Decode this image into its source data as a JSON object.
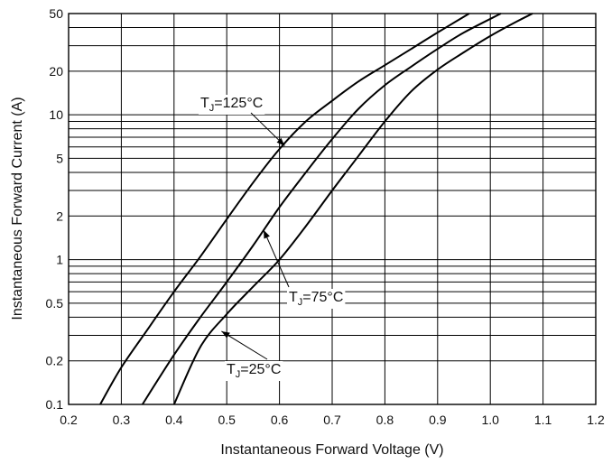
{
  "chart_data": {
    "type": "line",
    "title": "",
    "xlabel": "Instantaneous Forward Voltage (V)",
    "ylabel": "Instantaneous Forward Current (A)",
    "xlim": [
      0.2,
      1.2
    ],
    "ylim": [
      0.1,
      50
    ],
    "yscale": "log",
    "grid": true,
    "x_ticks": [
      "0.2",
      "0.3",
      "0.4",
      "0.5",
      "0.6",
      "0.7",
      "0.8",
      "0.9",
      "1.0",
      "1.1",
      "1.2"
    ],
    "y_ticks": [
      {
        "value": 0.1,
        "label": "0.1"
      },
      {
        "value": 0.2,
        "label": "0.2"
      },
      {
        "value": 0.5,
        "label": "0.5"
      },
      {
        "value": 1,
        "label": "1"
      },
      {
        "value": 2,
        "label": "2"
      },
      {
        "value": 5,
        "label": "5"
      },
      {
        "value": 10,
        "label": "10"
      },
      {
        "value": 20,
        "label": "20"
      },
      {
        "value": 50,
        "label": "50"
      }
    ],
    "series": [
      {
        "x": [
          0.26,
          0.3,
          0.35,
          0.4,
          0.45,
          0.5,
          0.55,
          0.6,
          0.65,
          0.7,
          0.75,
          0.8,
          0.85,
          0.9,
          0.96
        ],
        "y": [
          0.1,
          0.18,
          0.33,
          0.6,
          1.05,
          1.9,
          3.4,
          5.8,
          9.0,
          12.5,
          17.0,
          22.0,
          28.5,
          37.0,
          50.0
        ]
      },
      {
        "x": [
          0.34,
          0.4,
          0.45,
          0.5,
          0.55,
          0.6,
          0.65,
          0.7,
          0.75,
          0.8,
          0.85,
          0.9,
          0.95,
          1.02
        ],
        "y": [
          0.1,
          0.22,
          0.4,
          0.7,
          1.25,
          2.3,
          4.0,
          6.8,
          11.0,
          16.0,
          21.5,
          28.5,
          37.0,
          50.0
        ]
      },
      {
        "x": [
          0.4,
          0.45,
          0.5,
          0.55,
          0.6,
          0.65,
          0.7,
          0.75,
          0.8,
          0.85,
          0.9,
          0.95,
          1.0,
          1.05,
          1.08
        ],
        "y": [
          0.1,
          0.25,
          0.42,
          0.65,
          1.0,
          1.7,
          3.0,
          5.2,
          9.0,
          14.5,
          20.5,
          27.0,
          35.0,
          44.0,
          50.0
        ]
      }
    ],
    "annotations": [
      {
        "text_main": "T",
        "text_sub": "J",
        "text_rest": "=125°C",
        "point": [
          0.61,
          6.1
        ]
      },
      {
        "text_main": "T",
        "text_sub": "J",
        "text_rest": "=75°C",
        "point": [
          0.57,
          1.6
        ]
      },
      {
        "text_main": "T",
        "text_sub": "J",
        "text_rest": "=25°C",
        "point": [
          0.49,
          0.32
        ]
      }
    ]
  }
}
